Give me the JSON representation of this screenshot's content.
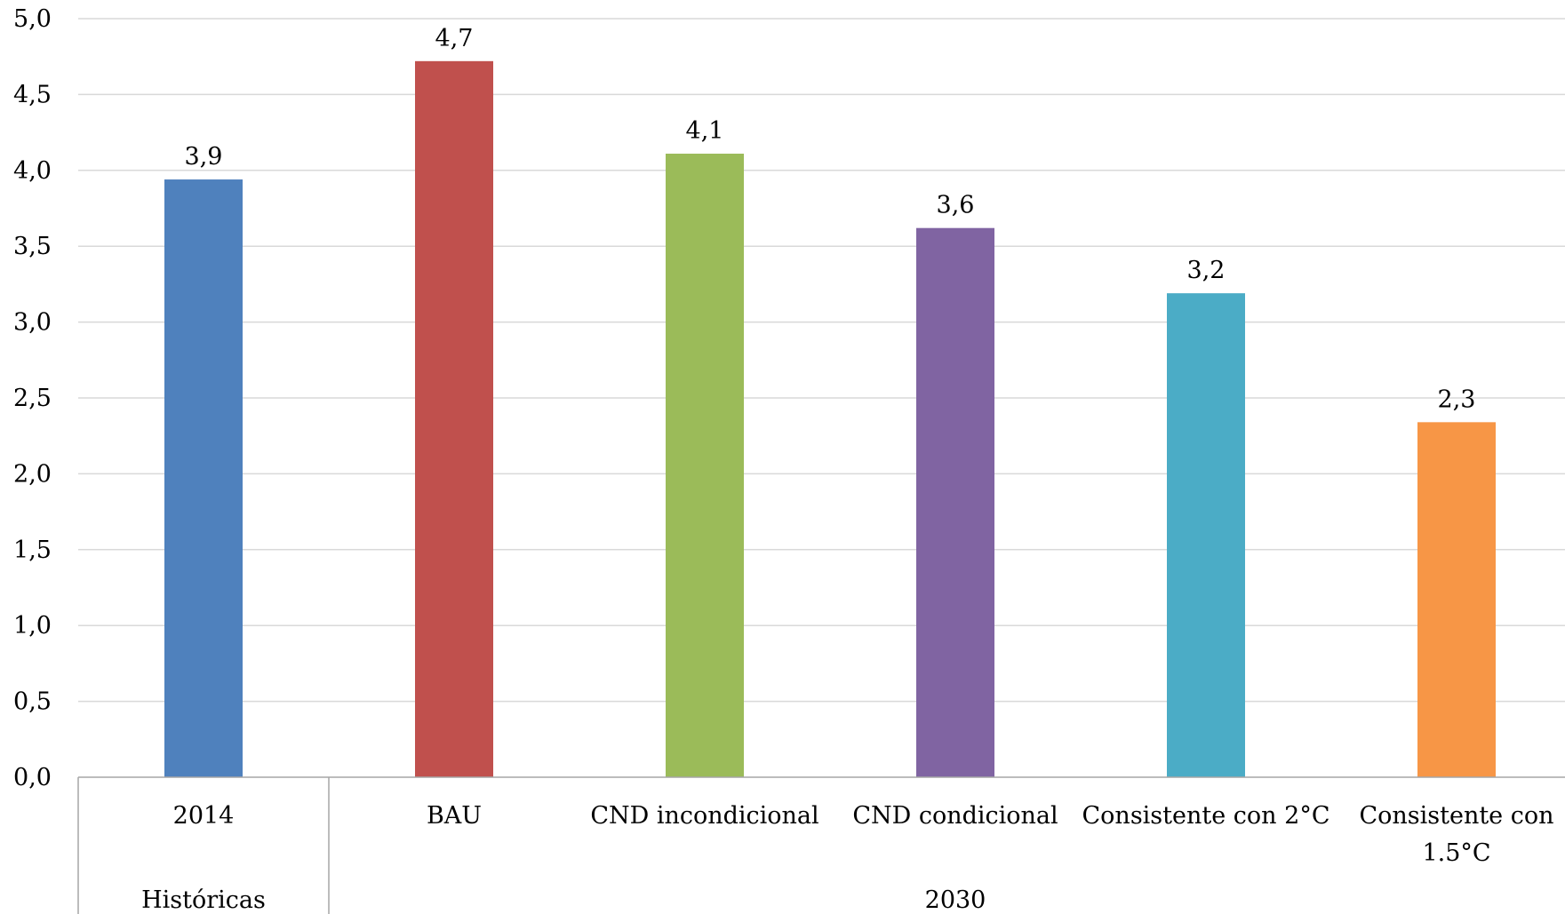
{
  "chart_data": {
    "type": "bar",
    "title": "",
    "xlabel": "",
    "ylabel": "",
    "ylim": [
      0,
      5
    ],
    "y_ticks": [
      "0,0",
      "0,5",
      "1,0",
      "1,5",
      "2,0",
      "2,5",
      "3,0",
      "3,5",
      "4,0",
      "4,5",
      "5,0"
    ],
    "grid": true,
    "legend": "none",
    "categories": [
      {
        "label": "2014",
        "label_lines": [
          "2014"
        ],
        "value": 3.94,
        "data_label": "3,9",
        "color": "#4F81BD",
        "group": "Históricas"
      },
      {
        "label": "BAU",
        "label_lines": [
          "BAU"
        ],
        "value": 4.72,
        "data_label": "4,7",
        "color": "#C0504D",
        "group": "2030"
      },
      {
        "label": "CND incondicional",
        "label_lines": [
          "CND incondicional"
        ],
        "value": 4.11,
        "data_label": "4,1",
        "color": "#9BBB59",
        "group": "2030"
      },
      {
        "label": "CND condicional",
        "label_lines": [
          "CND condicional"
        ],
        "value": 3.62,
        "data_label": "3,6",
        "color": "#8064A2",
        "group": "2030"
      },
      {
        "label": "Consistente con 2°C",
        "label_lines": [
          "Consistente con 2°C"
        ],
        "value": 3.19,
        "data_label": "3,2",
        "color": "#4BACC6",
        "group": "2030"
      },
      {
        "label": "Consistente con 1.5°C",
        "label_lines": [
          "Consistente con",
          "1.5°C"
        ],
        "value": 2.34,
        "data_label": "2,3",
        "color": "#F79646",
        "group": "2030"
      }
    ],
    "groups": [
      {
        "label": "Históricas",
        "count": 1
      },
      {
        "label": "2030",
        "count": 5
      }
    ]
  },
  "colors": {
    "grid": "#D9D9D9",
    "axis": "#A6A6A6"
  }
}
